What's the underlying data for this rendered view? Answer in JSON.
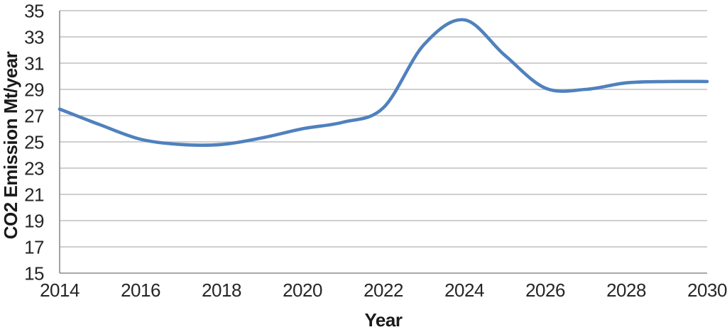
{
  "chart_data": {
    "type": "line",
    "title": "",
    "xlabel": "Year",
    "ylabel": "CO2 Emission Mt/year",
    "x": [
      2014,
      2015,
      2016,
      2017,
      2018,
      2019,
      2020,
      2021,
      2022,
      2023,
      2024,
      2025,
      2026,
      2027,
      2028,
      2029,
      2030
    ],
    "series": [
      {
        "name": "CO2 Emission",
        "color": "#4F81BD",
        "values": [
          27.5,
          26.3,
          25.2,
          24.8,
          24.8,
          25.3,
          26.0,
          26.5,
          27.6,
          32.4,
          34.3,
          31.6,
          29.1,
          29.0,
          29.5,
          29.6,
          29.6
        ]
      }
    ],
    "xlim": [
      2014,
      2030
    ],
    "ylim": [
      15,
      35
    ],
    "x_ticks": [
      2014,
      2016,
      2018,
      2020,
      2022,
      2024,
      2026,
      2028,
      2030
    ],
    "y_ticks": [
      15,
      17,
      19,
      21,
      23,
      25,
      27,
      29,
      31,
      33,
      35
    ],
    "grid": "horizontal",
    "legend_position": "none",
    "colors": {
      "line": "#4F81BD",
      "gridline": "#BFBFBF",
      "axis_line": "#8C8C8C",
      "text": "#262626",
      "background": "#FFFFFF"
    }
  }
}
